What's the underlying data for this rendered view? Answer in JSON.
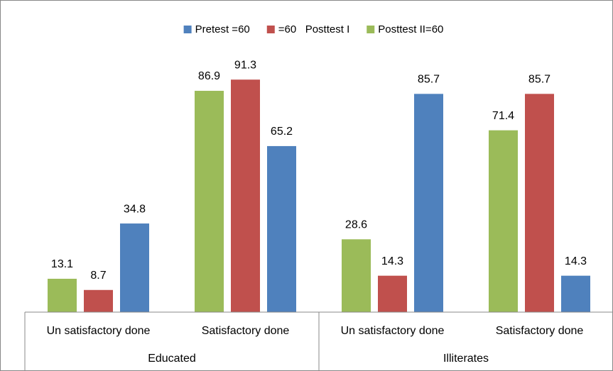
{
  "chart_data": {
    "type": "bar",
    "categories": [
      "Un satisfactory done",
      "Satisfactory done",
      "Un satisfactory done",
      "Satisfactory done"
    ],
    "groups": [
      "Educated",
      "Illiterates"
    ],
    "series": [
      {
        "name": "Pretest =60",
        "color": "#4f81bd",
        "values": [
          34.8,
          65.2,
          85.7,
          14.3
        ]
      },
      {
        "name": "=60   Posttest I",
        "color": "#c0504d",
        "values": [
          8.7,
          91.3,
          14.3,
          85.7
        ]
      },
      {
        "name": "Posttest II=60",
        "color": "#9bbb59",
        "values": [
          13.1,
          86.9,
          28.6,
          71.4
        ]
      }
    ],
    "ylim": [
      0,
      100
    ],
    "legend": "top"
  }
}
